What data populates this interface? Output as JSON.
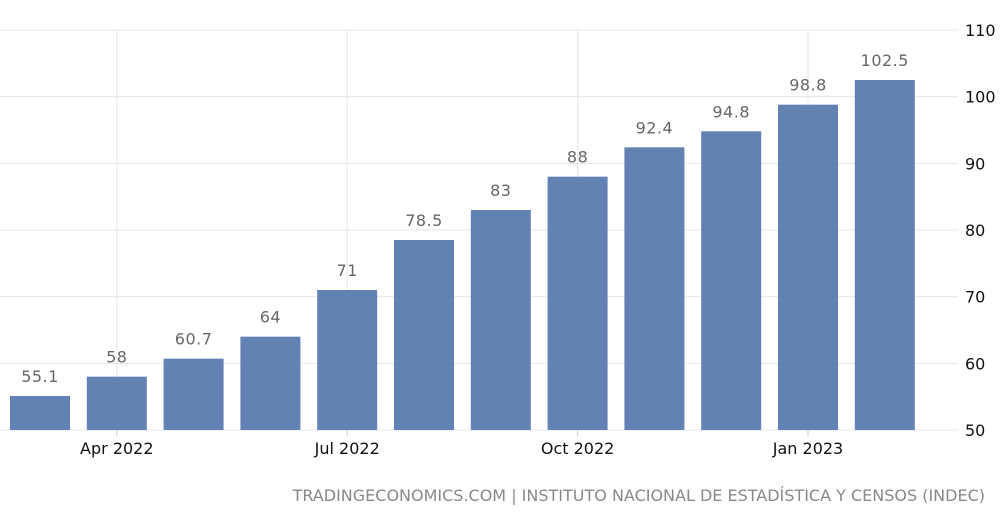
{
  "chart_data": {
    "type": "bar",
    "categories": [
      "Mar 2022",
      "Apr 2022",
      "May 2022",
      "Jun 2022",
      "Jul 2022",
      "Aug 2022",
      "Sep 2022",
      "Oct 2022",
      "Nov 2022",
      "Dec 2022",
      "Jan 2023",
      "Feb 2023"
    ],
    "values": [
      55.1,
      58,
      60.7,
      64,
      71,
      78.5,
      83,
      88,
      92.4,
      94.8,
      98.8,
      102.5
    ],
    "data_labels": [
      "55.1",
      "58",
      "60.7",
      "64",
      "71",
      "78.5",
      "83",
      "88",
      "92.4",
      "94.8",
      "98.8",
      "102.5"
    ],
    "x_tick_labels": [
      {
        "category": "Apr 2022",
        "label": "Apr 2022"
      },
      {
        "category": "Jul 2022",
        "label": "Jul 2022"
      },
      {
        "category": "Oct 2022",
        "label": "Oct 2022"
      },
      {
        "category": "Jan 2023",
        "label": "Jan 2023"
      }
    ],
    "y_ticks": [
      50,
      60,
      70,
      80,
      90,
      100,
      110
    ],
    "ylim": [
      50,
      110
    ],
    "y_axis_side": "right",
    "grid": true,
    "bar_color": "#6182b3",
    "title": "",
    "xlabel": "",
    "ylabel": ""
  },
  "source": "TRADINGECONOMICS.COM | INSTITUTO NACIONAL DE ESTADÍSTICA Y CENSOS (INDEC)"
}
